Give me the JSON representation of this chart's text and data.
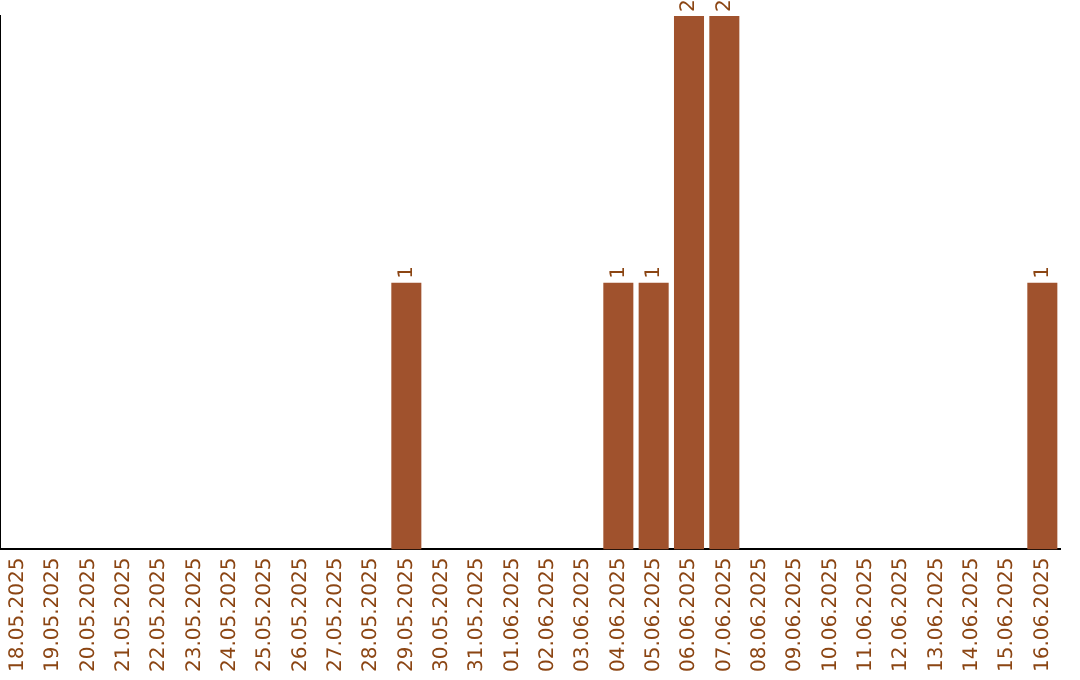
{
  "chart_data": {
    "type": "bar",
    "categories": [
      "18.05.2025",
      "19.05.2025",
      "20.05.2025",
      "21.05.2025",
      "22.05.2025",
      "23.05.2025",
      "24.05.2025",
      "25.05.2025",
      "26.05.2025",
      "27.05.2025",
      "28.05.2025",
      "29.05.2025",
      "30.05.2025",
      "31.05.2025",
      "01.06.2025",
      "02.06.2025",
      "03.06.2025",
      "04.06.2025",
      "05.06.2025",
      "06.06.2025",
      "07.06.2025",
      "08.06.2025",
      "09.06.2025",
      "10.06.2025",
      "11.06.2025",
      "12.06.2025",
      "13.06.2025",
      "14.06.2025",
      "15.06.2025",
      "16.06.2025"
    ],
    "values": [
      0,
      0,
      0,
      0,
      0,
      0,
      0,
      0,
      0,
      0,
      0,
      1,
      0,
      0,
      0,
      0,
      0,
      1,
      1,
      2,
      2,
      0,
      0,
      0,
      0,
      0,
      0,
      0,
      0,
      1
    ],
    "value_labels": [
      null,
      null,
      null,
      null,
      null,
      null,
      null,
      null,
      null,
      null,
      null,
      "1",
      null,
      null,
      null,
      null,
      null,
      "1",
      "1",
      "2",
      "2",
      null,
      null,
      null,
      null,
      null,
      null,
      null,
      null,
      "1"
    ],
    "color": "#a0522d",
    "grid": false,
    "legend": false
  }
}
